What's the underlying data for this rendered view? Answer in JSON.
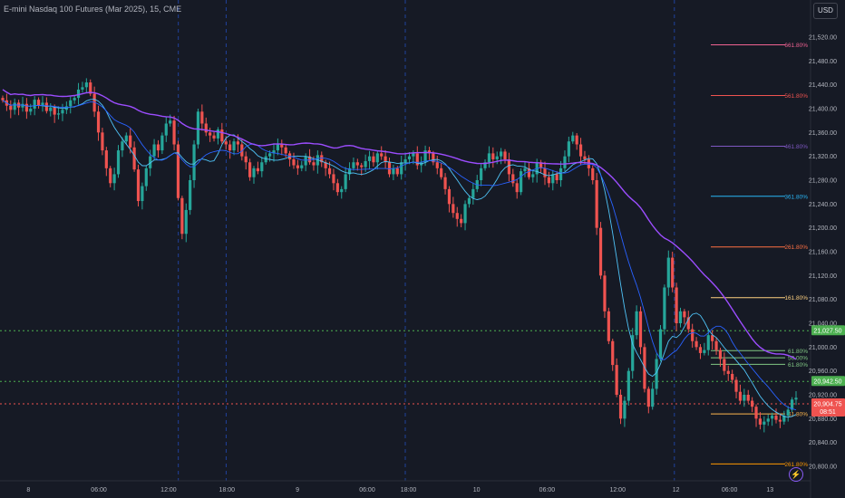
{
  "header": {
    "title": "E-mini Nasdaq 100 Futures (Mar 2025), 15, CME",
    "currency_button": "USD"
  },
  "colors": {
    "background": "#161a25",
    "up": "#26a69a",
    "down": "#ef5350",
    "grid_session": "#2962ff",
    "ma_slow": "#9c4dff",
    "ma_mid": "#2962ff",
    "ma_fast": "#4fc3f7"
  },
  "icons": {
    "alert": "lightning-icon"
  },
  "chart_data": {
    "type": "candlestick",
    "title": "E-mini Nasdaq 100 Futures (Mar 2025), 15, CME",
    "ylim": [
      20780,
      21560
    ],
    "y_ticks": [
      20800,
      20840,
      20880,
      20920,
      20960,
      21000,
      21040,
      21080,
      21120,
      21160,
      21200,
      21240,
      21280,
      21320,
      21360,
      21400,
      21440,
      21480,
      21520
    ],
    "y_tick_labels": [
      "20,800.00",
      "20,840.00",
      "20,880.00",
      "20,920.00",
      "20,960.00",
      "21,000.00",
      "21,040.00",
      "21,080.00",
      "21,120.00",
      "21,160.00",
      "21,200.00",
      "21,240.00",
      "21,280.00",
      "21,320.00",
      "21,360.00",
      "21,400.00",
      "21,440.00",
      "21,480.00",
      "21,520.00"
    ],
    "x_tick_labels": [
      {
        "label": "8",
        "pos": 0.035
      },
      {
        "label": "06:00",
        "pos": 0.122
      },
      {
        "label": "12:00",
        "pos": 0.208
      },
      {
        "label": "18:00",
        "pos": 0.28
      },
      {
        "label": "9",
        "pos": 0.367
      },
      {
        "label": "06:00",
        "pos": 0.453
      },
      {
        "label": "18:00",
        "pos": 0.504
      },
      {
        "label": "10",
        "pos": 0.588
      },
      {
        "label": "06:00",
        "pos": 0.675
      },
      {
        "label": "12:00",
        "pos": 0.762
      },
      {
        "label": "12",
        "pos": 0.834
      },
      {
        "label": "06:00",
        "pos": 0.9
      },
      {
        "label": "13",
        "pos": 0.95
      }
    ],
    "session_lines": [
      0.22,
      0.279,
      0.5,
      0.832
    ],
    "horizontal_levels": [
      {
        "price": 21027.5,
        "label": "21,027.50",
        "color": "#4caf50",
        "style": "dotted"
      },
      {
        "price": 20942.5,
        "label": "20,942.50",
        "color": "#4caf50",
        "style": "dotted"
      },
      {
        "price": 20904.75,
        "label": "20,904.75",
        "sublabel": "08:51",
        "color": "#ef5350",
        "style": "dotted"
      }
    ],
    "fib_levels": [
      {
        "price": 21507,
        "label": "661.80%",
        "color": "#f06292"
      },
      {
        "price": 21422,
        "label": "561.80%",
        "color": "#ef5350"
      },
      {
        "price": 21337,
        "label": "461.80%",
        "color": "#7e57c2"
      },
      {
        "price": 21253,
        "label": "361.80%",
        "color": "#29b6f6"
      },
      {
        "price": 21168,
        "label": "261.80%",
        "color": "#ff7043"
      },
      {
        "price": 21083,
        "label": "161.80%",
        "color": "#ffd180"
      },
      {
        "price": 20994,
        "label": "61.80%",
        "color": "#81c784"
      },
      {
        "price": 20982,
        "label": "50.00%",
        "color": "#81c784"
      },
      {
        "price": 20971,
        "label": "61.80%",
        "color": "#81c784"
      },
      {
        "price": 20888,
        "label": "61.80%",
        "color": "#ffb74d"
      },
      {
        "price": 20804,
        "label": "261.80%",
        "color": "#ff9800"
      }
    ],
    "close_path": [
      21414,
      21405,
      21398,
      21410,
      21402,
      21408,
      21395,
      21400,
      21415,
      21405,
      21410,
      21396,
      21402,
      21390,
      21392,
      21398,
      21404,
      21414,
      21418,
      21432,
      21436,
      21444,
      21425,
      21395,
      21360,
      21330,
      21300,
      21275,
      21290,
      21330,
      21345,
      21355,
      21335,
      21298,
      21245,
      21270,
      21300,
      21320,
      21340,
      21330,
      21355,
      21375,
      21380,
      21340,
      21250,
      21190,
      21230,
      21280,
      21340,
      21395,
      21375,
      21360,
      21355,
      21350,
      21365,
      21345,
      21340,
      21330,
      21345,
      21340,
      21320,
      21310,
      21285,
      21300,
      21295,
      21310,
      21320,
      21325,
      21330,
      21340,
      21335,
      21325,
      21315,
      21305,
      21300,
      21305,
      21320,
      21310,
      21305,
      21322,
      21310,
      21300,
      21290,
      21275,
      21260,
      21265,
      21290,
      21300,
      21310,
      21305,
      21302,
      21312,
      21320,
      21310,
      21325,
      21320,
      21310,
      21290,
      21300,
      21290,
      21310,
      21315,
      21320,
      21325,
      21305,
      21310,
      21330,
      21325,
      21310,
      21300,
      21285,
      21265,
      21240,
      21225,
      21215,
      21208,
      21240,
      21250,
      21265,
      21280,
      21300,
      21310,
      21325,
      21315,
      21320,
      21328,
      21315,
      21290,
      21275,
      21260,
      21295,
      21300,
      21285,
      21290,
      21310,
      21300,
      21285,
      21275,
      21290,
      21280,
      21300,
      21320,
      21345,
      21355,
      21340,
      21320,
      21315,
      21300,
      21280,
      21200,
      21120,
      21060,
      21010,
      20970,
      20920,
      20880,
      20910,
      20960,
      21020,
      21060,
      21000,
      20930,
      20900,
      20930,
      20980,
      21030,
      21100,
      21150,
      21100,
      21040,
      21060,
      21050,
      21030,
      21010,
      21000,
      20990,
      20995,
      21020,
      21010,
      20995,
      20980,
      20960,
      20955,
      20945,
      20925,
      20910,
      20920,
      20910,
      20900,
      20880,
      20870,
      20875,
      20880,
      20885,
      20878,
      20875,
      20885,
      20895,
      20912,
      20915
    ]
  }
}
